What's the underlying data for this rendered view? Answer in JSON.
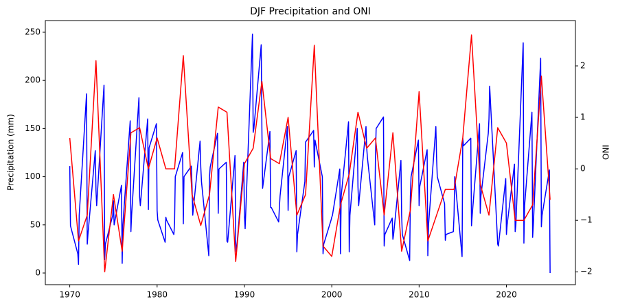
{
  "chart_data": {
    "type": "line",
    "title": "DJF Precipitation and ONI",
    "ylabel": "Precipitation (mm)",
    "ylabel_color": "blue",
    "y2label": "ONI",
    "y2label_color": "red",
    "xlim": [
      1967.2,
      2027.9
    ],
    "xticks": [
      1970,
      1980,
      1990,
      2000,
      2010,
      2020
    ],
    "ylim": [
      -12.1,
      262.1
    ],
    "yticks": [
      0,
      50,
      100,
      150,
      200,
      250
    ],
    "y2lim": [
      -2.25,
      2.88
    ],
    "y2ticks": [
      {
        "value": -2,
        "label": "−2"
      },
      {
        "value": -1,
        "label": "−1"
      },
      0,
      1,
      2
    ],
    "series": [
      {
        "name": "Precipitation (mm)",
        "color": "blue",
        "x": [
          1970,
          1970.08,
          1970.92,
          1971,
          1971.08,
          1971.92,
          1972,
          1972.08,
          1972.92,
          1973,
          1973.08,
          1973.92,
          1974,
          1974.08,
          1974.92,
          1975,
          1975.08,
          1975.92,
          1976,
          1976.08,
          1976.92,
          1977,
          1977.08,
          1977.92,
          1978,
          1978.08,
          1978.92,
          1979,
          1979.08,
          1979.92,
          1980,
          1980.08,
          1980.92,
          1981,
          1981.08,
          1981.92,
          1982,
          1982.08,
          1982.92,
          1983,
          1983.08,
          1983.92,
          1984,
          1984.08,
          1984.92,
          1985,
          1985.08,
          1985.92,
          1986,
          1986.08,
          1986.92,
          1987,
          1987.08,
          1987.92,
          1988,
          1988.08,
          1988.92,
          1989,
          1989.08,
          1989.92,
          1990,
          1990.08,
          1990.92,
          1991,
          1991.08,
          1991.92,
          1992,
          1992.08,
          1992.92,
          1993,
          1993.08,
          1993.92,
          1994,
          1994.08,
          1994.92,
          1995,
          1995.08,
          1995.92,
          1996,
          1996.08,
          1996.92,
          1997,
          1997.08,
          1997.92,
          1998,
          1998.08,
          1998.92,
          1999,
          1999.08,
          1999.92,
          2000,
          2000.08,
          2000.92,
          2001,
          2001.08,
          2001.92,
          2002,
          2002.08,
          2002.92,
          2003,
          2003.08,
          2003.92,
          2004,
          2004.08,
          2004.92,
          2005,
          2005.08,
          2005.92,
          2006,
          2006.08,
          2006.92,
          2007,
          2007.08,
          2007.92,
          2008,
          2008.08,
          2008.92,
          2009,
          2009.08,
          2009.92,
          2010,
          2010.08,
          2010.92,
          2011,
          2011.08,
          2011.92,
          2012,
          2012.08,
          2012.92,
          2013,
          2013.08,
          2013.92,
          2014,
          2014.08,
          2014.92,
          2015,
          2015.08,
          2015.92,
          2016,
          2016.08,
          2016.92,
          2017,
          2017.08,
          2017.92,
          2018,
          2018.08,
          2018.92,
          2019,
          2019.08,
          2019.92,
          2020,
          2020.08,
          2020.92,
          2021,
          2021.08,
          2021.92,
          2022,
          2022.08,
          2022.92,
          2023,
          2023.08,
          2023.92,
          2024,
          2024.08,
          2024.92,
          2025
        ],
        "values": [
          111,
          49,
          20,
          9,
          60,
          186,
          30,
          40,
          127,
          86,
          70,
          195,
          14,
          30,
          60,
          75,
          50,
          91,
          10,
          50,
          158,
          43,
          60,
          182,
          79,
          70,
          160,
          66,
          130,
          155,
          65,
          55,
          32,
          58,
          55,
          40,
          52,
          100,
          125,
          51,
          100,
          111,
          90,
          60,
          137,
          110,
          95,
          18,
          100,
          110,
          145,
          62,
          108,
          115,
          33,
          32,
          122,
          32,
          22,
          115,
          60,
          46,
          248,
          146,
          150,
          237,
          150,
          88,
          147,
          68,
          68,
          53,
          68,
          80,
          152,
          65,
          100,
          127,
          22,
          40,
          95,
          136,
          137,
          148,
          110,
          138,
          100,
          20,
          30,
          55,
          58,
          60,
          108,
          20,
          80,
          157,
          22,
          60,
          150,
          90,
          70,
          152,
          130,
          120,
          50,
          120,
          150,
          162,
          28,
          40,
          57,
          35,
          40,
          117,
          60,
          40,
          13,
          80,
          100,
          138,
          70,
          90,
          128,
          18,
          50,
          152,
          120,
          100,
          72,
          34,
          40,
          43,
          60,
          100,
          17,
          140,
          132,
          140,
          49,
          60,
          155,
          62,
          80,
          145,
          160,
          194,
          45,
          30,
          28,
          98,
          40,
          50,
          113,
          43,
          50,
          239,
          31,
          70,
          167,
          37,
          50,
          223,
          48,
          60,
          107,
          0
        ]
      },
      {
        "name": "ONI",
        "color": "red",
        "axis": "y2",
        "x": [
          1970,
          1971,
          1972,
          1973,
          1974,
          1975,
          1976,
          1977,
          1978,
          1979,
          1980,
          1981,
          1982,
          1983,
          1984,
          1985,
          1986,
          1987,
          1988,
          1989,
          1990,
          1991,
          1992,
          1993,
          1994,
          1995,
          1996,
          1997,
          1998,
          1999,
          2000,
          2001,
          2002,
          2003,
          2004,
          2005,
          2006,
          2007,
          2008,
          2009,
          2010,
          2011,
          2012,
          2013,
          2014,
          2015,
          2016,
          2017,
          2018,
          2019,
          2020,
          2021,
          2022,
          2023,
          2024,
          2025
        ],
        "values": [
          0.6,
          -1.4,
          -0.9,
          2.1,
          -2.0,
          -0.5,
          -1.6,
          0.7,
          0.8,
          0.0,
          0.6,
          0.0,
          0.0,
          2.2,
          -0.5,
          -1.1,
          -0.5,
          1.2,
          1.1,
          -1.8,
          0.1,
          0.4,
          1.7,
          0.2,
          0.1,
          1.0,
          -0.9,
          -0.5,
          2.4,
          -1.5,
          -1.7,
          -0.7,
          -0.1,
          1.1,
          0.4,
          0.6,
          -0.9,
          0.7,
          -1.6,
          -0.8,
          1.5,
          -1.4,
          -0.9,
          -0.4,
          -0.4,
          0.6,
          2.6,
          -0.3,
          -0.9,
          0.8,
          0.5,
          -1.0,
          -1.0,
          -0.7,
          1.8,
          -0.6
        ]
      }
    ]
  }
}
